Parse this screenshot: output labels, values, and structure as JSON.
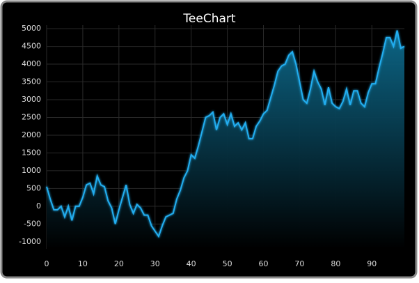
{
  "chart_data": {
    "type": "area",
    "title": "TeeChart",
    "x": [
      0,
      1,
      2,
      3,
      4,
      5,
      6,
      7,
      8,
      9,
      10,
      11,
      12,
      13,
      14,
      15,
      16,
      17,
      18,
      19,
      20,
      21,
      22,
      23,
      24,
      25,
      26,
      27,
      28,
      29,
      30,
      31,
      32,
      33,
      34,
      35,
      36,
      37,
      38,
      39,
      40,
      41,
      42,
      43,
      44,
      45,
      46,
      47,
      48,
      49,
      50,
      51,
      52,
      53,
      54,
      55,
      56,
      57,
      58,
      59,
      60,
      61,
      62,
      63,
      64,
      65,
      66,
      67,
      68,
      69,
      70,
      71,
      72,
      73,
      74,
      75,
      76,
      77,
      78,
      79,
      80,
      81,
      82,
      83,
      84,
      85,
      86,
      87,
      88,
      89,
      90,
      91,
      92,
      93,
      94,
      95,
      96,
      97,
      98,
      99
    ],
    "series": [
      {
        "color": "#22aef0",
        "values": [
          550,
          200,
          -100,
          -100,
          0,
          -300,
          0,
          -400,
          0,
          0,
          250,
          600,
          650,
          350,
          850,
          600,
          550,
          150,
          -50,
          -500,
          -100,
          250,
          600,
          50,
          -200,
          50,
          -50,
          -250,
          -250,
          -550,
          -700,
          -850,
          -550,
          -300,
          -250,
          -200,
          200,
          450,
          800,
          1000,
          1450,
          1350,
          1700,
          2100,
          2500,
          2550,
          2650,
          2150,
          2500,
          2600,
          2300,
          2600,
          2250,
          2350,
          2150,
          2350,
          1900,
          1900,
          2250,
          2400,
          2600,
          2700,
          3050,
          3400,
          3800,
          3950,
          4000,
          4250,
          4350,
          4000,
          3500,
          3000,
          2900,
          3300,
          3800,
          3500,
          3300,
          2850,
          3350,
          2900,
          2800,
          2750,
          2950,
          3300,
          2850,
          3250,
          3250,
          2900,
          2800,
          3200,
          3450,
          3450,
          3900,
          4300,
          4750,
          4750,
          4500,
          4950,
          4450,
          4500
        ]
      }
    ],
    "xlim": [
      0,
      99
    ],
    "xticks": [
      0,
      10,
      20,
      30,
      40,
      50,
      60,
      70,
      80,
      90
    ],
    "ylim": [
      -1200,
      5100
    ],
    "yticks": [
      -1000,
      -500,
      0,
      500,
      1000,
      1500,
      2000,
      2500,
      3000,
      3500,
      4000,
      4500,
      5000
    ],
    "grid": true
  }
}
